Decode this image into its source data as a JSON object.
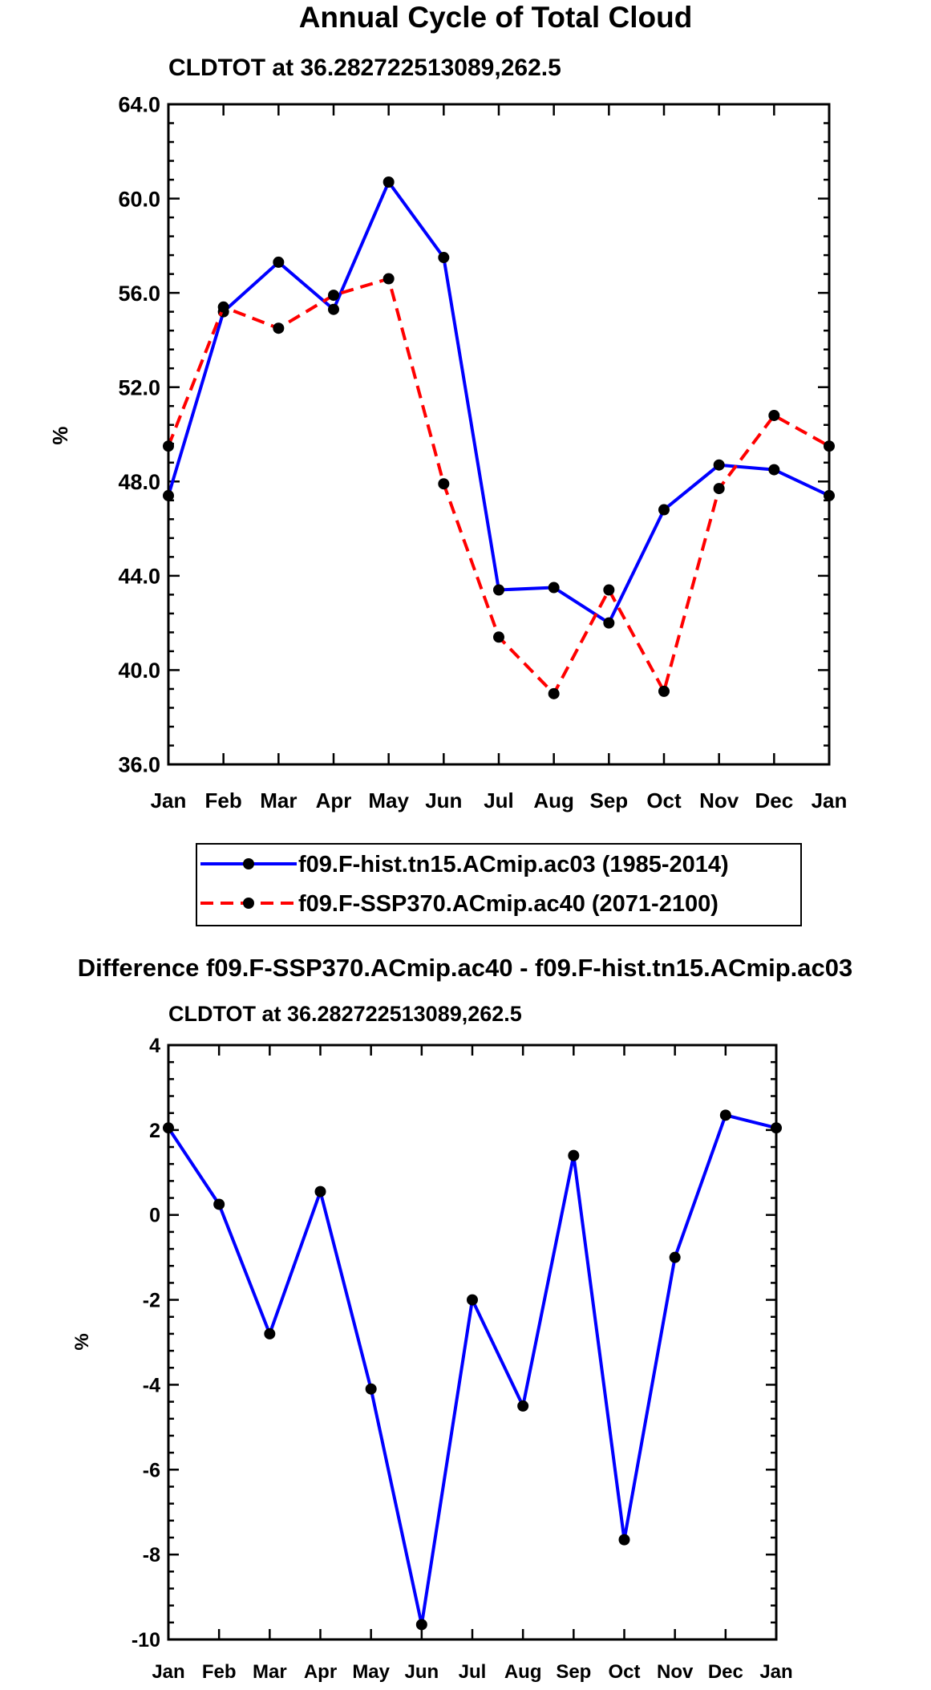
{
  "chart_data": [
    {
      "type": "line",
      "title": "Annual Cycle of Total Cloud",
      "subtitle": "CLDTOT at 36.282722513089,262.5",
      "xlabel": "",
      "ylabel": "%",
      "categories": [
        "Jan",
        "Feb",
        "Mar",
        "Apr",
        "May",
        "Jun",
        "Jul",
        "Aug",
        "Sep",
        "Oct",
        "Nov",
        "Dec",
        "Jan"
      ],
      "ylim": [
        36.0,
        64.0
      ],
      "yticks": [
        "36.0",
        "40.0",
        "44.0",
        "48.0",
        "52.0",
        "56.0",
        "60.0",
        "64.0"
      ],
      "series": [
        {
          "name": "f09.F-hist.tn15.ACmip.ac03 (1985-2014)",
          "color": "#0000ff",
          "dash": "solid",
          "values": [
            47.4,
            55.2,
            57.3,
            55.3,
            60.7,
            57.5,
            43.4,
            43.5,
            42.0,
            46.8,
            48.7,
            48.5,
            47.4
          ]
        },
        {
          "name": "f09.F-SSP370.ACmip.ac40 (2071-2100)",
          "color": "#ff0000",
          "dash": "dashed",
          "values": [
            49.5,
            55.4,
            54.5,
            55.9,
            56.6,
            47.9,
            41.4,
            39.0,
            43.4,
            39.1,
            47.7,
            50.8,
            49.5
          ]
        }
      ],
      "legend": "below"
    },
    {
      "type": "line",
      "title": "Difference f09.F-SSP370.ACmip.ac40 - f09.F-hist.tn15.ACmip.ac03",
      "subtitle": "CLDTOT at 36.282722513089,262.5",
      "xlabel": "",
      "ylabel": "%",
      "categories": [
        "Jan",
        "Feb",
        "Mar",
        "Apr",
        "May",
        "Jun",
        "Jul",
        "Aug",
        "Sep",
        "Oct",
        "Nov",
        "Dec",
        "Jan"
      ],
      "ylim": [
        -10,
        4
      ],
      "yticks": [
        "-10",
        "-8",
        "-6",
        "-4",
        "-2",
        "0",
        "2",
        "4"
      ],
      "series": [
        {
          "name": "difference",
          "color": "#0000ff",
          "dash": "solid",
          "values": [
            2.05,
            0.25,
            -2.8,
            0.55,
            -4.1,
            -9.65,
            -2.0,
            -4.5,
            1.4,
            -7.65,
            -1.0,
            2.35,
            2.05
          ]
        }
      ]
    }
  ]
}
